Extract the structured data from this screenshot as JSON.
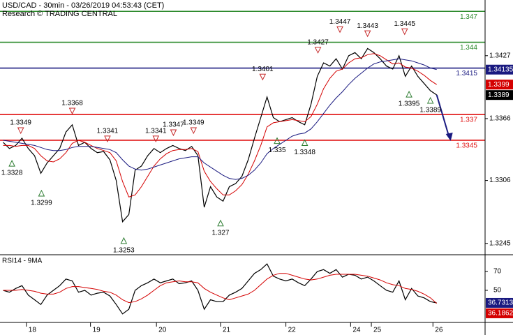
{
  "chart_data": [
    {
      "type": "line",
      "title": "USD/CAD - 30min - 03/26/2019 04:53:43 (CET)",
      "subtitle": "Research © TRADING CENTRAL",
      "ylim": [
        1.3234,
        1.3481
      ],
      "yticks": [
        1.3245,
        1.3306,
        1.3366,
        1.3427
      ],
      "series": [
        {
          "color": "#000000",
          "values": [
            1.3343,
            1.3337,
            1.334,
            1.3347,
            1.3337,
            1.333,
            1.3313,
            1.3323,
            1.333,
            1.3337,
            1.3353,
            1.336,
            1.334,
            1.3343,
            1.3337,
            1.3333,
            1.3334,
            1.3326,
            1.3306,
            1.3266,
            1.3273,
            1.3316,
            1.332,
            1.333,
            1.3337,
            1.3333,
            1.3337,
            1.334,
            1.3337,
            1.3335,
            1.3339,
            1.333,
            1.328,
            1.33,
            1.329,
            1.3286,
            1.33,
            1.3303,
            1.331,
            1.3326,
            1.3347,
            1.3367,
            1.3387,
            1.3367,
            1.3363,
            1.3365,
            1.3367,
            1.3363,
            1.336,
            1.338,
            1.3407,
            1.342,
            1.3417,
            1.3424,
            1.3414,
            1.3427,
            1.343,
            1.3424,
            1.3434,
            1.343,
            1.3424,
            1.3417,
            1.3414,
            1.3427,
            1.3407,
            1.3417,
            1.3407,
            1.34,
            1.3393,
            1.3389
          ]
        },
        {
          "color": "#d40000",
          "values": [
            1.334,
            1.334,
            1.3339,
            1.334,
            1.334,
            1.3337,
            1.333,
            1.3325,
            1.3324,
            1.3327,
            1.3333,
            1.3342,
            1.3345,
            1.3343,
            1.334,
            1.3337,
            1.3335,
            1.3333,
            1.3325,
            1.3305,
            1.329,
            1.3292,
            1.33,
            1.331,
            1.332,
            1.3327,
            1.3332,
            1.3335,
            1.3336,
            1.3336,
            1.3337,
            1.3334,
            1.3315,
            1.3305,
            1.3298,
            1.3292,
            1.3292,
            1.3296,
            1.3302,
            1.3312,
            1.3325,
            1.334,
            1.3358,
            1.3362,
            1.3363,
            1.3364,
            1.3365,
            1.3364,
            1.3363,
            1.3368,
            1.338,
            1.3395,
            1.3405,
            1.3412,
            1.3414,
            1.342,
            1.3424,
            1.3425,
            1.3428,
            1.3429,
            1.3427,
            1.3423,
            1.3419,
            1.342,
            1.3416,
            1.3415,
            1.3412,
            1.3408,
            1.3403,
            1.3399
          ]
        },
        {
          "color": "#1a1a80",
          "values": [
            1.3345,
            1.3344,
            1.3343,
            1.3342,
            1.3341,
            1.334,
            1.3338,
            1.3336,
            1.3335,
            1.3335,
            1.3336,
            1.3338,
            1.3339,
            1.3339,
            1.3339,
            1.3338,
            1.3337,
            1.3336,
            1.3333,
            1.3326,
            1.332,
            1.3317,
            1.3316,
            1.3317,
            1.3319,
            1.3321,
            1.3323,
            1.3325,
            1.3327,
            1.3328,
            1.3329,
            1.3329,
            1.3323,
            1.3319,
            1.3315,
            1.3311,
            1.3308,
            1.3307,
            1.3308,
            1.3311,
            1.3316,
            1.3323,
            1.3332,
            1.3337,
            1.3341,
            1.3345,
            1.3349,
            1.3351,
            1.3352,
            1.3356,
            1.3363,
            1.3371,
            1.3379,
            1.3386,
            1.3392,
            1.3399,
            1.3405,
            1.341,
            1.3415,
            1.3419,
            1.3421,
            1.3422,
            1.3423,
            1.3424,
            1.3423,
            1.3422,
            1.342,
            1.3418,
            1.3415,
            1.34135
          ]
        }
      ],
      "levels": [
        {
          "value": 1.347,
          "color": "#2e8b2e"
        },
        {
          "value": 1.344,
          "color": "#2e8b2e"
        },
        {
          "value": 1.3415,
          "color": "#1a1a80"
        },
        {
          "value": 1.337,
          "color": "#e01010"
        },
        {
          "value": 1.3345,
          "color": "#e01010"
        }
      ],
      "marker_colors": {
        "up": "#2e7d32",
        "down": "#c62828"
      },
      "annotations": [
        {
          "value": 1.3349,
          "x": 2.8,
          "marker": "down"
        },
        {
          "value": 1.3328,
          "x": 1.4,
          "marker": "up"
        },
        {
          "value": 1.3299,
          "x": 6.1,
          "marker": "up"
        },
        {
          "value": 1.3368,
          "x": 11,
          "marker": "down"
        },
        {
          "value": 1.3341,
          "x": 16.6,
          "marker": "down"
        },
        {
          "value": 1.3253,
          "x": 19.2,
          "marker": "up"
        },
        {
          "value": 1.3341,
          "x": 24.3,
          "marker": "down"
        },
        {
          "value": 1.3347,
          "x": 27.1,
          "marker": "down"
        },
        {
          "value": 1.3349,
          "x": 30.3,
          "marker": "down"
        },
        {
          "value": 1.327,
          "x": 34.6,
          "marker": "up"
        },
        {
          "value": 1.3401,
          "x": 41.3,
          "marker": "down"
        },
        {
          "value": 1.335,
          "x": 43.6,
          "marker": "up"
        },
        {
          "value": 1.3348,
          "x": 48,
          "marker": "up"
        },
        {
          "value": 1.3427,
          "x": 50.1,
          "marker": "down"
        },
        {
          "value": 1.3447,
          "x": 53.6,
          "marker": "down"
        },
        {
          "value": 1.3443,
          "x": 58,
          "marker": "down"
        },
        {
          "value": 1.3445,
          "x": 63.9,
          "marker": "down"
        },
        {
          "value": 1.3395,
          "x": 64.6,
          "marker": "up"
        },
        {
          "value": 1.3389,
          "x": 68,
          "marker": "up"
        }
      ]
    },
    {
      "type": "line",
      "title": "RSI14 - 9MA",
      "ylim": [
        16,
        85.5
      ],
      "yticks": [
        50,
        70
      ],
      "xlim": [
        -0.5,
        76.7
      ],
      "xticks": [
        {
          "value": 3.7,
          "label": "18"
        },
        {
          "value": 13.9,
          "label": "19"
        },
        {
          "value": 24.4,
          "label": "20"
        },
        {
          "value": 34.6,
          "label": "21"
        },
        {
          "value": 45,
          "label": "22"
        },
        {
          "value": 55.3,
          "label": "24"
        },
        {
          "value": 58.6,
          "label": "25"
        },
        {
          "value": 68.4,
          "label": "26"
        }
      ],
      "series": [
        {
          "color": "#000000",
          "values": [
            50,
            48,
            52,
            55,
            45,
            40,
            35,
            45,
            50,
            55,
            62,
            60,
            48,
            50,
            45,
            47,
            48,
            44,
            35,
            25,
            30,
            50,
            55,
            58,
            62,
            58,
            60,
            62,
            57,
            58,
            60,
            50,
            30,
            40,
            38,
            38,
            45,
            48,
            52,
            60,
            68,
            72,
            78,
            65,
            62,
            60,
            62,
            58,
            55,
            62,
            70,
            72,
            68,
            72,
            64,
            67,
            66,
            62,
            64,
            60,
            55,
            50,
            48,
            60,
            40,
            52,
            44,
            42,
            38,
            36.7313
          ]
        },
        {
          "color": "#d40000",
          "values": [
            50,
            50,
            50,
            51,
            50,
            49,
            47,
            46,
            46,
            48,
            52,
            54,
            54,
            53,
            52,
            51,
            49,
            48,
            45,
            40,
            37,
            38,
            41,
            45,
            50,
            55,
            58,
            59,
            60,
            59,
            59,
            58,
            52,
            48,
            45,
            42,
            40,
            42,
            44,
            46,
            50,
            56,
            62,
            66,
            68,
            68,
            66,
            64,
            62,
            61,
            62,
            64,
            66,
            67,
            67,
            67,
            67,
            66,
            65,
            63,
            61,
            58,
            56,
            55,
            52,
            51,
            49,
            46,
            42,
            36.1862
          ]
        }
      ]
    }
  ]
}
